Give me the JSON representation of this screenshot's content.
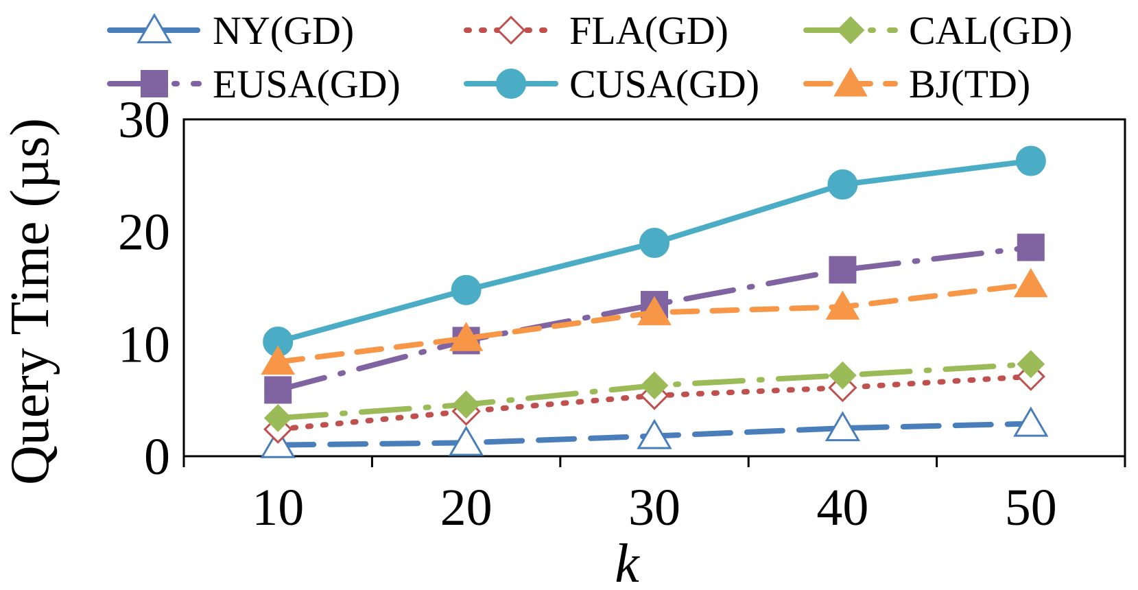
{
  "chart_data": {
    "type": "line",
    "title": "",
    "xlabel": "k",
    "ylabel": "Query Time (µs)",
    "x": [
      10,
      20,
      30,
      40,
      50
    ],
    "x_tick_labels": [
      "10",
      "20",
      "30",
      "40",
      "50"
    ],
    "y_tick_labels": [
      "0",
      "10",
      "20",
      "30"
    ],
    "xlim": [
      5,
      55
    ],
    "ylim": [
      0,
      30
    ],
    "grid": false,
    "legend_position": "top",
    "series": [
      {
        "name": "NY(GD)",
        "values": [
          1.0,
          1.2,
          1.8,
          2.5,
          2.9
        ],
        "color": "#4a7ebb",
        "dash": "long-dash",
        "marker": "triangle-open"
      },
      {
        "name": "FLA(GD)",
        "values": [
          2.4,
          4.0,
          5.4,
          6.1,
          7.1
        ],
        "color": "#c0504d",
        "dash": "dot",
        "marker": "diamond-open"
      },
      {
        "name": "CAL(GD)",
        "values": [
          3.4,
          4.6,
          6.3,
          7.2,
          8.2
        ],
        "color": "#9bbb59",
        "dash": "long-dash-dot",
        "marker": "diamond"
      },
      {
        "name": "EUSA(GD)",
        "values": [
          5.9,
          10.3,
          13.5,
          16.6,
          18.6
        ],
        "color": "#8064a2",
        "dash": "long-dash-dot",
        "marker": "square"
      },
      {
        "name": "CUSA(GD)",
        "values": [
          10.2,
          14.8,
          19.0,
          24.2,
          26.3
        ],
        "color": "#4bacc6",
        "dash": "solid",
        "marker": "circle"
      },
      {
        "name": "BJ(TD)",
        "values": [
          8.4,
          10.5,
          12.8,
          13.3,
          15.3
        ],
        "color": "#f79646",
        "dash": "dash",
        "marker": "triangle"
      }
    ]
  }
}
